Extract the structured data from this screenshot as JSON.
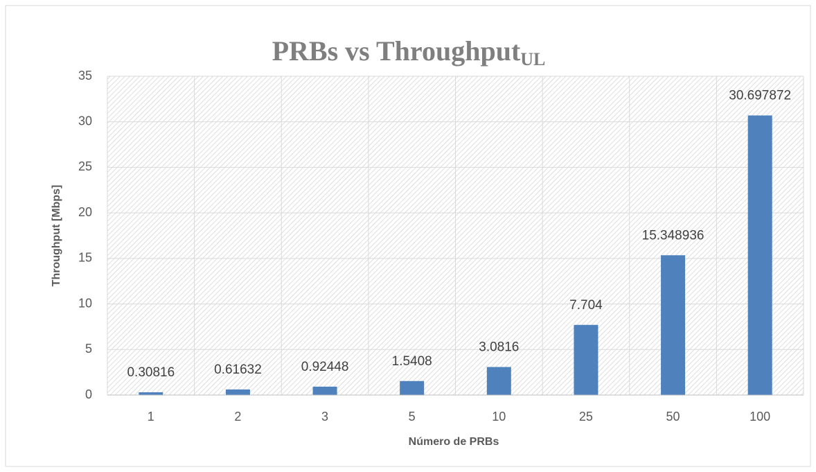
{
  "chart_data": {
    "type": "bar",
    "title": "PRBs vs Throughput",
    "title_subscript": "UL",
    "x_label": "Número de PRBs",
    "y_label": "Throughput [Mbps]",
    "categories": [
      "1",
      "2",
      "3",
      "5",
      "10",
      "25",
      "50",
      "100"
    ],
    "values": [
      0.30816,
      0.61632,
      0.92448,
      1.5408,
      3.0816,
      7.704,
      15.348936,
      30.697872
    ],
    "color": "#4f81bd",
    "ylim": [
      0,
      35
    ],
    "yticks": [
      0,
      5,
      10,
      15,
      20,
      25,
      30,
      35
    ],
    "grid": true,
    "data_labels": true
  }
}
